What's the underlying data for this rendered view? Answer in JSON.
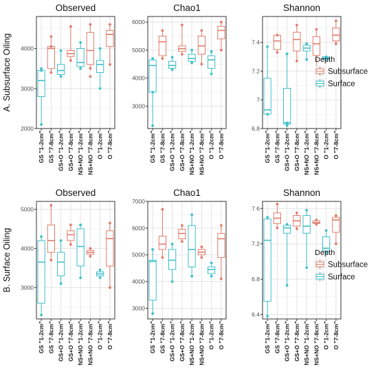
{
  "figure": {
    "legend_title": "Depth",
    "legend_entries": [
      {
        "name": "Subsurface",
        "color": "#E07B6A"
      },
      {
        "name": "Surface",
        "color": "#3EBFCB"
      }
    ]
  },
  "chart_data": [
    {
      "type": "box",
      "row_label": "A. Subsurface Oiling",
      "title": "Observed",
      "categories": [
        "GS \"1-2cm\"",
        "GS \"7-8cm\"",
        "GS+O \"1-2cm\"",
        "GS+O \"7-8cm\"",
        "NS+NO \"1-2cm\"",
        "NS+NO \"7-8cm\"",
        "O \"1-2cm\"",
        "O \"7-8cm\""
      ],
      "groups": [
        "Surface",
        "Subsurface",
        "Surface",
        "Subsurface",
        "Surface",
        "Subsurface",
        "Surface",
        "Subsurface"
      ],
      "ylim": [
        2000,
        4800
      ],
      "yticks": [
        2000,
        3000,
        4000
      ],
      "boxes": [
        {
          "min": 2100,
          "q1": 2800,
          "median": 3200,
          "q3": 3450,
          "max": 3500,
          "points": [
            2100,
            3450,
            3500
          ]
        },
        {
          "min": 3400,
          "q1": 3500,
          "median": 4000,
          "q3": 4050,
          "max": 4300,
          "points": [
            3400,
            4050,
            4300
          ]
        },
        {
          "min": 3300,
          "q1": 3350,
          "median": 3450,
          "q3": 3600,
          "max": 3950,
          "points": [
            3300,
            3950
          ]
        },
        {
          "min": 3700,
          "q1": 3800,
          "median": 3870,
          "q3": 3950,
          "max": 4550,
          "points": [
            3700,
            4550
          ]
        },
        {
          "min": 3500,
          "q1": 3550,
          "median": 3650,
          "q3": 4000,
          "max": 4150,
          "points": [
            3500,
            4150
          ]
        },
        {
          "min": 3500,
          "q1": 3600,
          "median": 3950,
          "q3": 4400,
          "max": 4600,
          "points": [
            3300,
            3500,
            4600
          ]
        },
        {
          "min": 3000,
          "q1": 3400,
          "median": 3600,
          "q3": 3700,
          "max": 4000,
          "points": [
            3000,
            4000
          ]
        },
        {
          "min": 3600,
          "q1": 4050,
          "median": 4350,
          "q3": 4450,
          "max": 4600,
          "points": [
            3600,
            4600
          ]
        }
      ]
    },
    {
      "type": "box",
      "title": "Chao1",
      "ylim": [
        2200,
        6200
      ],
      "yticks": [
        3000,
        4000,
        5000,
        6000
      ],
      "boxes": [
        {
          "min": 2300,
          "q1": 3500,
          "median": 4450,
          "q3": 4650,
          "max": 4700,
          "points": [
            2300,
            3500,
            4700
          ]
        },
        {
          "min": 4700,
          "q1": 4800,
          "median": 5300,
          "q3": 5500,
          "max": 5700,
          "points": [
            4700,
            5700
          ]
        },
        {
          "min": 4300,
          "q1": 4350,
          "median": 4450,
          "q3": 4600,
          "max": 4750,
          "points": [
            4300,
            4750
          ]
        },
        {
          "min": 4850,
          "q1": 4950,
          "median": 5050,
          "q3": 5150,
          "max": 5900,
          "points": [
            4850,
            5900
          ]
        },
        {
          "min": 4550,
          "q1": 4600,
          "median": 4700,
          "q3": 4850,
          "max": 5000,
          "points": [
            4550,
            5000
          ]
        },
        {
          "min": 4500,
          "q1": 4850,
          "median": 5150,
          "q3": 5500,
          "max": 5700,
          "points": [
            4500,
            5700
          ]
        },
        {
          "min": 4150,
          "q1": 4350,
          "median": 4650,
          "q3": 4800,
          "max": 4950,
          "points": [
            4150,
            4950
          ]
        },
        {
          "min": 5000,
          "q1": 5400,
          "median": 5700,
          "q3": 5850,
          "max": 6000,
          "points": [
            5000,
            6000
          ]
        }
      ]
    },
    {
      "type": "box",
      "title": "Shannon",
      "ylim": [
        6.8,
        7.58
      ],
      "yticks": [
        6.8,
        7.0,
        7.2,
        7.4
      ],
      "boxes": [
        {
          "min": 6.9,
          "q1": 6.9,
          "median": 6.93,
          "q3": 7.15,
          "max": 7.37,
          "points": [
            6.9,
            7.37
          ]
        },
        {
          "min": 7.33,
          "q1": 7.35,
          "median": 7.41,
          "q3": 7.45,
          "max": 7.45,
          "points": [
            7.33,
            7.45
          ]
        },
        {
          "min": 6.82,
          "q1": 6.83,
          "median": 6.84,
          "q3": 7.08,
          "max": 7.32,
          "points": [
            6.82,
            6.84,
            7.32
          ]
        },
        {
          "min": 7.27,
          "q1": 7.34,
          "median": 7.42,
          "q3": 7.47,
          "max": 7.52,
          "points": [
            7.27,
            7.52
          ]
        },
        {
          "min": 7.28,
          "q1": 7.34,
          "median": 7.36,
          "q3": 7.38,
          "max": 7.39,
          "points": [
            7.28,
            7.39
          ]
        },
        {
          "min": 7.22,
          "q1": 7.31,
          "median": 7.39,
          "q3": 7.44,
          "max": 7.49,
          "points": [
            7.22,
            7.49
          ]
        },
        {
          "min": 7.28,
          "q1": 7.285,
          "median": 7.29,
          "q3": 7.3,
          "max": 7.3,
          "points": [
            7.28,
            7.3
          ]
        },
        {
          "min": 7.39,
          "q1": 7.41,
          "median": 7.45,
          "q3": 7.5,
          "max": 7.55,
          "points": [
            7.39,
            7.55
          ]
        }
      ]
    },
    {
      "type": "box",
      "row_label": "B. Surface Oiling",
      "title": "Observed",
      "ylim": [
        2200,
        5200
      ],
      "yticks": [
        3000,
        4000,
        5000
      ],
      "boxes": [
        {
          "min": 2300,
          "q1": 2600,
          "median": 3650,
          "q3": 4200,
          "max": 4300,
          "points": [
            2300,
            4300
          ]
        },
        {
          "min": 3700,
          "q1": 3900,
          "median": 4200,
          "q3": 4600,
          "max": 5100,
          "points": [
            3700,
            5100
          ]
        },
        {
          "min": 3100,
          "q1": 3300,
          "median": 3650,
          "q3": 3900,
          "max": 4200,
          "points": [
            3100,
            4200
          ]
        },
        {
          "min": 4100,
          "q1": 4200,
          "median": 4350,
          "q3": 4450,
          "max": 4600,
          "points": [
            4100,
            4600
          ]
        },
        {
          "min": 3250,
          "q1": 3550,
          "median": 4050,
          "q3": 4500,
          "max": 4600,
          "points": [
            3250,
            4600
          ]
        },
        {
          "min": 3800,
          "q1": 3850,
          "median": 3900,
          "q3": 3950,
          "max": 4000,
          "points": [
            3800,
            4000
          ]
        },
        {
          "min": 3250,
          "q1": 3300,
          "median": 3350,
          "q3": 3400,
          "max": 3450,
          "points": [
            3250,
            3450
          ]
        },
        {
          "min": 3000,
          "q1": 3550,
          "median": 4250,
          "q3": 4450,
          "max": 4650,
          "points": [
            3000,
            4650
          ]
        }
      ]
    },
    {
      "type": "box",
      "title": "Chao1",
      "ylim": [
        2600,
        7000
      ],
      "yticks": [
        3000,
        4000,
        5000,
        6000,
        7000
      ],
      "boxes": [
        {
          "min": 2800,
          "q1": 3300,
          "median": 4750,
          "q3": 4800,
          "max": 5200,
          "points": [
            2800,
            5200
          ]
        },
        {
          "min": 4900,
          "q1": 5200,
          "median": 5400,
          "q3": 5700,
          "max": 6700,
          "points": [
            4900,
            6700
          ]
        },
        {
          "min": 4000,
          "q1": 4450,
          "median": 4800,
          "q3": 5200,
          "max": 5400,
          "points": [
            4000,
            5400
          ]
        },
        {
          "min": 5500,
          "q1": 5600,
          "median": 5800,
          "q3": 5950,
          "max": 6100,
          "points": [
            5500,
            6100
          ]
        },
        {
          "min": 4200,
          "q1": 4550,
          "median": 5200,
          "q3": 6100,
          "max": 6500,
          "points": [
            4200,
            6500
          ]
        },
        {
          "min": 4900,
          "q1": 5000,
          "median": 5100,
          "q3": 5200,
          "max": 5300,
          "points": [
            4900,
            5300
          ]
        },
        {
          "min": 4200,
          "q1": 4300,
          "median": 4450,
          "q3": 4550,
          "max": 4700,
          "points": [
            4200,
            4700
          ]
        },
        {
          "min": 4100,
          "q1": 4900,
          "median": 5600,
          "q3": 5800,
          "max": 6100,
          "points": [
            4100,
            6100
          ]
        }
      ]
    },
    {
      "type": "box",
      "title": "Shannon",
      "ylim": [
        6.35,
        7.68
      ],
      "yticks": [
        6.4,
        6.8,
        7.2,
        7.6
      ],
      "boxes": [
        {
          "min": 6.38,
          "q1": 6.55,
          "median": 7.24,
          "q3": 7.48,
          "max": 7.5,
          "points": [
            6.38,
            7.5
          ]
        },
        {
          "min": 7.38,
          "q1": 7.43,
          "median": 7.49,
          "q3": 7.55,
          "max": 7.65,
          "points": [
            7.38,
            7.65
          ]
        },
        {
          "min": 6.73,
          "q1": 7.32,
          "median": 7.38,
          "q3": 7.41,
          "max": 7.42,
          "points": [
            6.73,
            7.42
          ]
        },
        {
          "min": 7.37,
          "q1": 7.4,
          "median": 7.46,
          "q3": 7.52,
          "max": 7.55,
          "points": [
            7.37,
            7.55
          ]
        },
        {
          "min": 6.93,
          "q1": 7.32,
          "median": 7.4,
          "q3": 7.52,
          "max": 7.58,
          "points": [
            6.93,
            7.58
          ]
        },
        {
          "min": 7.42,
          "q1": 7.43,
          "median": 7.44,
          "q3": 7.46,
          "max": 7.47,
          "points": [
            7.42,
            7.47
          ]
        },
        {
          "min": 7.1,
          "q1": 7.12,
          "median": 7.15,
          "q3": 7.28,
          "max": 7.35,
          "points": [
            7.1,
            7.35
          ]
        },
        {
          "min": 7.2,
          "q1": 7.33,
          "median": 7.47,
          "q3": 7.5,
          "max": 7.52,
          "points": [
            7.2,
            7.52
          ]
        }
      ]
    }
  ]
}
